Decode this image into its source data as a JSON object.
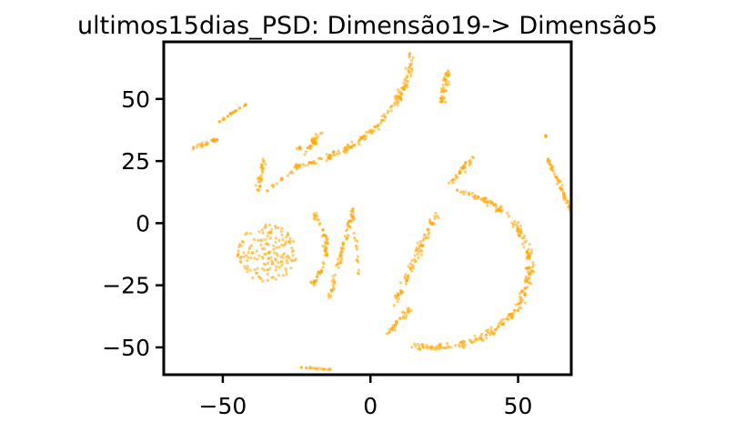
{
  "chart_data": {
    "type": "scatter",
    "title": "ultimos15dias_PSD: Dimensão19-> Dimensão5",
    "xlabel": "",
    "ylabel": "",
    "xlim": [
      -70,
      68
    ],
    "ylim": [
      -61,
      73
    ],
    "x_ticks": [
      -50,
      0,
      50
    ],
    "x_tick_labels": [
      "−50",
      "0",
      "50"
    ],
    "y_ticks": [
      -50,
      -25,
      0,
      25,
      50
    ],
    "y_tick_labels": [
      "−50",
      "−25",
      "0",
      "25",
      "50"
    ],
    "grid": false,
    "legend": "none",
    "point_color": "#FFA500",
    "clusters": [
      {
        "kind": "arc",
        "center": [
          -35,
          71
        ],
        "radius": 49,
        "angle_range_deg": [
          -3,
          -80
        ],
        "count": 180,
        "spread": 1.4
      },
      {
        "kind": "arc",
        "center": [
          -40,
          -10
        ],
        "radius": 25,
        "angle_range_deg": [
          -36,
          35
        ],
        "count": 70,
        "spread": 1.1
      },
      {
        "kind": "arc",
        "center": [
          22,
          -18
        ],
        "radius": 32,
        "angle_range_deg": [
          80,
          -105
        ],
        "count": 280,
        "spread": 1.6
      },
      {
        "kind": "blob",
        "center": [
          -35,
          -12
        ],
        "radius": [
          10,
          11.5
        ],
        "count": 160
      },
      {
        "kind": "segment",
        "from": [
          -14,
          -30
        ],
        "to": [
          -6,
          5
        ],
        "count": 70,
        "spread": 1.0
      },
      {
        "kind": "segment",
        "from": [
          -4,
          -20
        ],
        "to": [
          -6,
          7
        ],
        "count": 20,
        "spread": 0.7
      },
      {
        "kind": "segment",
        "from": [
          5,
          -45
        ],
        "to": [
          14,
          -34
        ],
        "count": 35,
        "spread": 1.3
      },
      {
        "kind": "segment",
        "from": [
          8,
          -33
        ],
        "to": [
          22,
          3
        ],
        "count": 90,
        "spread": 1.5
      },
      {
        "kind": "segment",
        "from": [
          24,
          48
        ],
        "to": [
          26,
          61
        ],
        "count": 45,
        "spread": 1.3
      },
      {
        "kind": "segment",
        "from": [
          27,
          16
        ],
        "to": [
          35,
          27
        ],
        "count": 35,
        "spread": 1.4
      },
      {
        "kind": "segment",
        "from": [
          60,
          26
        ],
        "to": [
          68,
          5
        ],
        "count": 55,
        "spread": 0.9
      },
      {
        "kind": "segment",
        "from": [
          -51,
          41
        ],
        "to": [
          -42,
          48
        ],
        "count": 25,
        "spread": 0.4
      },
      {
        "kind": "segment",
        "from": [
          -60,
          30
        ],
        "to": [
          -51,
          34
        ],
        "count": 30,
        "spread": 1.0
      },
      {
        "kind": "segment",
        "from": [
          -38,
          13
        ],
        "to": [
          -36,
          25
        ],
        "count": 30,
        "spread": 1.2
      },
      {
        "kind": "segment",
        "from": [
          -35,
          13
        ],
        "to": [
          -25,
          22
        ],
        "count": 15,
        "spread": 0.8
      },
      {
        "kind": "segment",
        "from": [
          -22,
          28
        ],
        "to": [
          -17,
          37
        ],
        "count": 35,
        "spread": 1.3
      },
      {
        "kind": "segment",
        "from": [
          -24,
          -58
        ],
        "to": [
          -13,
          -59
        ],
        "count": 20,
        "spread": 0.4
      },
      {
        "kind": "blob",
        "center": [
          59,
          35
        ],
        "radius": [
          0.7,
          0.7
        ],
        "count": 4
      },
      {
        "kind": "blob",
        "center": [
          -24,
          30
        ],
        "radius": [
          1,
          1
        ],
        "count": 6
      }
    ]
  }
}
